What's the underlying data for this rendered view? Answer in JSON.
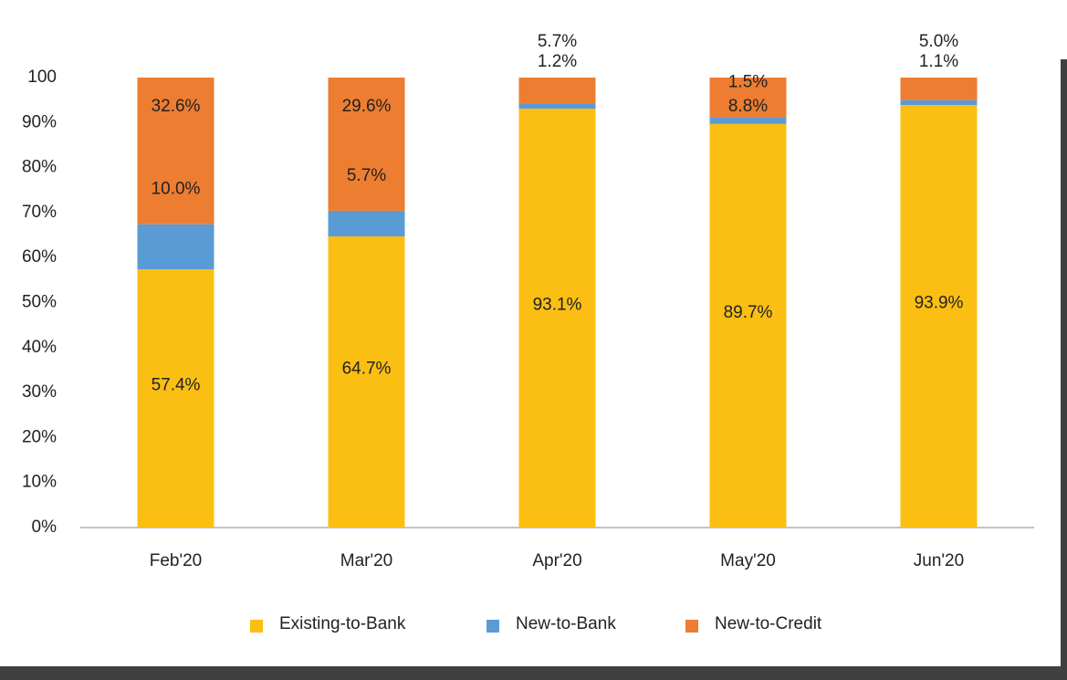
{
  "chart_data": {
    "type": "stacked_bar",
    "categories": [
      "Feb'20",
      "Mar'20",
      "Apr'20",
      "May'20",
      "Jun'20"
    ],
    "series": [
      {
        "name": "Existing-to-Bank",
        "color": "#fbbf13",
        "values": [
          57.4,
          64.7,
          93.1,
          89.7,
          93.9
        ],
        "value_labels": [
          "57.4%",
          "64.7%",
          "93.1%",
          "89.7%",
          "93.9%"
        ]
      },
      {
        "name": "New-to-Bank",
        "color": "#5b9bd5",
        "values": [
          10.0,
          5.7,
          1.2,
          1.5,
          1.1
        ],
        "value_labels": [
          "10.0%",
          "5.7%",
          "1.2%",
          "1.5%",
          "1.1%"
        ]
      },
      {
        "name": "New-to-Credit",
        "color": "#ed7d31",
        "values": [
          32.6,
          29.6,
          5.7,
          8.8,
          5.0
        ],
        "value_labels": [
          "32.6%",
          "29.6%",
          "5.7%",
          "8.8%",
          "5.0%"
        ]
      }
    ],
    "ylim": [
      0,
      100
    ],
    "yticks": [
      {
        "value": 0,
        "label": "0%"
      },
      {
        "value": 10,
        "label": "10%"
      },
      {
        "value": 20,
        "label": "20%"
      },
      {
        "value": 30,
        "label": "30%"
      },
      {
        "value": 40,
        "label": "40%"
      },
      {
        "value": 50,
        "label": "50%"
      },
      {
        "value": 60,
        "label": "60%"
      },
      {
        "value": 70,
        "label": "70%"
      },
      {
        "value": 80,
        "label": "80%"
      },
      {
        "value": 90,
        "label": "90%"
      },
      100
    ],
    "grid": false,
    "legend": "bottom"
  }
}
